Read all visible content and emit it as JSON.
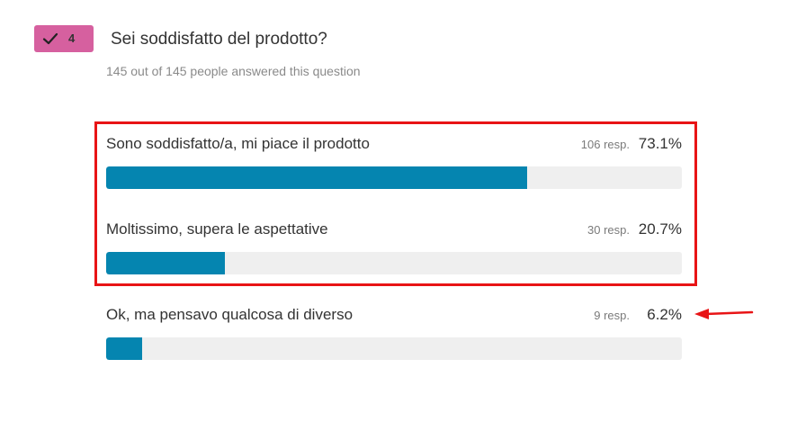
{
  "question": {
    "number": "4",
    "title": "Sei soddisfatto del prodotto?",
    "subtitle": "145 out of 145 people answered this question",
    "badge_color": "#d6609f"
  },
  "options": [
    {
      "label": "Sono soddisfatto/a, mi piace il prodotto",
      "responses": "106 resp.",
      "percent": "73.1%",
      "fraction": 0.731
    },
    {
      "label": "Moltissimo, supera le aspettative",
      "responses": "30 resp.",
      "percent": "20.7%",
      "fraction": 0.207
    },
    {
      "label": "Ok, ma pensavo qualcosa di diverso",
      "responses": "9 resp.",
      "percent": "6.2%",
      "fraction": 0.062
    }
  ],
  "colors": {
    "bar_fill": "#0585b0",
    "bar_track": "#efefef",
    "highlight": "#e81416",
    "arrow": "#e81416"
  },
  "icons": {
    "badge": "checkmark-icon",
    "annotation": "arrow-left-icon"
  }
}
